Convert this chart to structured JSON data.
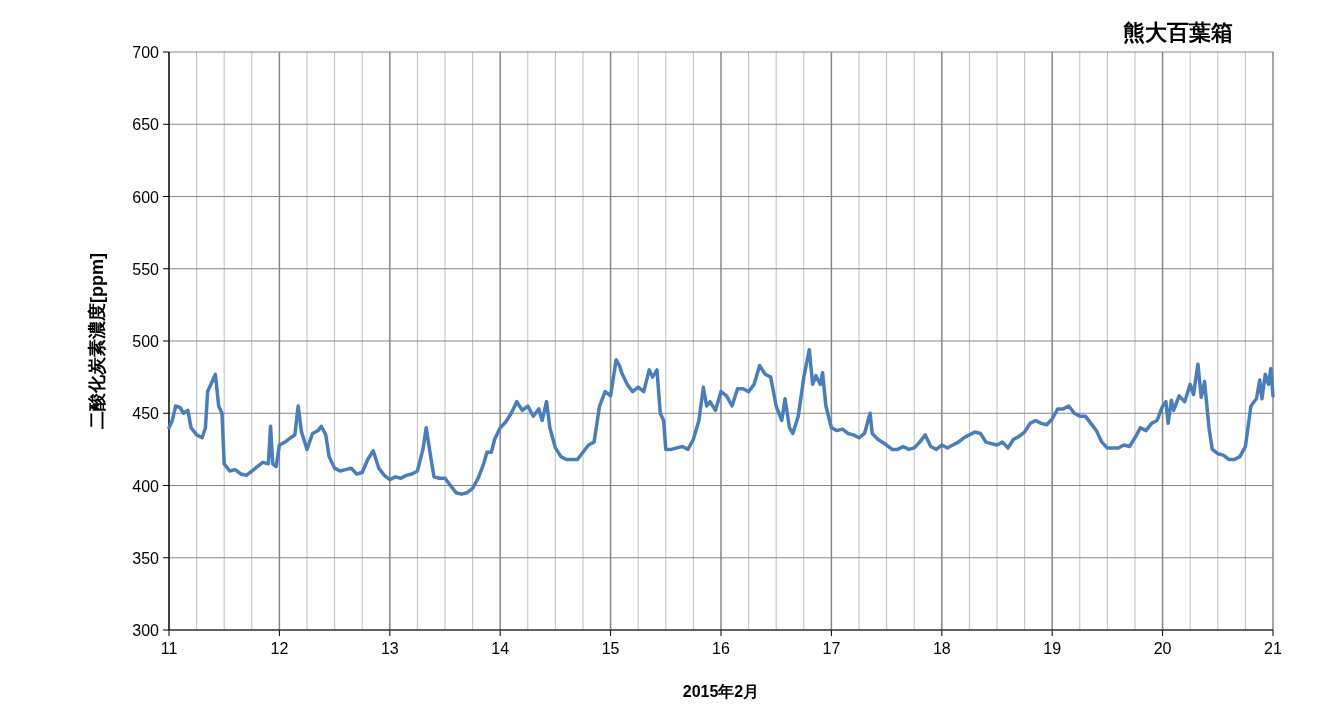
{
  "chart_data": {
    "type": "line",
    "title": "熊大百葉箱",
    "xlabel": "2015年2月",
    "ylabel": "二酸化炭素濃度[ppm]",
    "grid": true,
    "marker": "none",
    "line_style": "solid",
    "xlim": [
      11,
      21
    ],
    "ylim": [
      300,
      700
    ],
    "xticks": [
      11,
      {
        "value": 11.25,
        "label": null
      },
      {
        "value": 11.5,
        "label": null
      },
      {
        "value": 11.75,
        "label": null
      },
      12,
      {
        "value": 12.25,
        "label": null
      },
      {
        "value": 12.5,
        "label": null
      },
      {
        "value": 12.75,
        "label": null
      },
      13,
      {
        "value": 13.25,
        "label": null
      },
      {
        "value": 13.5,
        "label": null
      },
      {
        "value": 13.75,
        "label": null
      },
      14,
      {
        "value": 14.25,
        "label": null
      },
      {
        "value": 14.5,
        "label": null
      },
      {
        "value": 14.75,
        "label": null
      },
      15,
      {
        "value": 15.25,
        "label": null
      },
      {
        "value": 15.5,
        "label": null
      },
      {
        "value": 15.75,
        "label": null
      },
      16,
      {
        "value": 16.25,
        "label": null
      },
      {
        "value": 16.5,
        "label": null
      },
      {
        "value": 16.75,
        "label": null
      },
      17,
      {
        "value": 17.25,
        "label": null
      },
      {
        "value": 17.5,
        "label": null
      },
      {
        "value": 17.75,
        "label": null
      },
      18,
      {
        "value": 18.25,
        "label": null
      },
      {
        "value": 18.5,
        "label": null
      },
      {
        "value": 18.75,
        "label": null
      },
      19,
      {
        "value": 19.25,
        "label": null
      },
      {
        "value": 19.5,
        "label": null
      },
      {
        "value": 19.75,
        "label": null
      },
      20,
      {
        "value": 20.25,
        "label": null
      },
      {
        "value": 20.5,
        "label": null
      },
      {
        "value": 20.75,
        "label": null
      },
      21
    ],
    "yticks": [
      300,
      350,
      400,
      450,
      500,
      550,
      600,
      650,
      700
    ],
    "series": [
      {
        "color": "#4a7ebb",
        "x": [
          11.0,
          11.03,
          11.06,
          11.1,
          11.13,
          11.17,
          11.2,
          11.25,
          11.3,
          11.33,
          11.35,
          11.38,
          11.42,
          11.45,
          11.48,
          11.5,
          11.55,
          11.6,
          11.65,
          11.7,
          11.75,
          11.8,
          11.85,
          11.9,
          11.92,
          11.94,
          11.97,
          12.0,
          12.05,
          12.1,
          12.14,
          12.17,
          12.2,
          12.25,
          12.3,
          12.35,
          12.38,
          12.42,
          12.45,
          12.5,
          12.55,
          12.6,
          12.65,
          12.7,
          12.75,
          12.8,
          12.85,
          12.9,
          12.95,
          13.0,
          13.05,
          13.1,
          13.15,
          13.2,
          13.25,
          13.3,
          13.33,
          13.37,
          13.4,
          13.45,
          13.5,
          13.55,
          13.6,
          13.65,
          13.7,
          13.75,
          13.8,
          13.85,
          13.88,
          13.92,
          13.95,
          14.0,
          14.05,
          14.1,
          14.15,
          14.2,
          14.25,
          14.3,
          14.35,
          14.38,
          14.42,
          14.45,
          14.5,
          14.55,
          14.6,
          14.65,
          14.7,
          14.75,
          14.8,
          14.85,
          14.9,
          14.95,
          15.0,
          15.05,
          15.08,
          15.1,
          15.15,
          15.2,
          15.25,
          15.3,
          15.35,
          15.38,
          15.42,
          15.45,
          15.48,
          15.5,
          15.55,
          15.6,
          15.65,
          15.7,
          15.75,
          15.8,
          15.84,
          15.87,
          15.9,
          15.95,
          16.0,
          16.05,
          16.1,
          16.15,
          16.2,
          16.25,
          16.3,
          16.35,
          16.4,
          16.45,
          16.5,
          16.55,
          16.58,
          16.62,
          16.65,
          16.7,
          16.75,
          16.8,
          16.83,
          16.86,
          16.9,
          16.92,
          16.95,
          17.0,
          17.05,
          17.1,
          17.15,
          17.2,
          17.25,
          17.3,
          17.35,
          17.37,
          17.42,
          17.5,
          17.55,
          17.6,
          17.65,
          17.7,
          17.75,
          17.8,
          17.85,
          17.9,
          17.95,
          18.0,
          18.05,
          18.1,
          18.15,
          18.2,
          18.25,
          18.3,
          18.35,
          18.4,
          18.45,
          18.5,
          18.55,
          18.6,
          18.65,
          18.7,
          18.75,
          18.8,
          18.85,
          18.9,
          18.95,
          19.0,
          19.05,
          19.1,
          19.15,
          19.2,
          19.25,
          19.3,
          19.35,
          19.4,
          19.45,
          19.5,
          19.55,
          19.6,
          19.65,
          19.7,
          19.75,
          19.8,
          19.85,
          19.9,
          19.95,
          20.0,
          20.03,
          20.05,
          20.08,
          20.1,
          20.15,
          20.2,
          20.25,
          20.28,
          20.32,
          20.35,
          20.38,
          20.42,
          20.45,
          20.5,
          20.55,
          20.6,
          20.65,
          20.7,
          20.75,
          20.8,
          20.85,
          20.88,
          20.9,
          20.93,
          20.96,
          20.98,
          21.0
        ],
        "values": [
          440,
          445,
          455,
          454,
          450,
          452,
          440,
          435,
          433,
          440,
          465,
          470,
          477,
          455,
          450,
          415,
          410,
          411,
          408,
          407,
          410,
          413,
          416,
          415,
          441,
          415,
          413,
          428,
          430,
          433,
          435,
          455,
          437,
          425,
          436,
          438,
          441,
          435,
          420,
          412,
          410,
          411,
          412,
          408,
          409,
          418,
          424,
          412,
          407,
          404,
          406,
          405,
          407,
          408,
          410,
          425,
          440,
          420,
          406,
          405,
          405,
          400,
          395,
          394,
          395,
          398,
          405,
          415,
          423,
          423,
          432,
          440,
          444,
          450,
          458,
          452,
          455,
          448,
          453,
          445,
          458,
          440,
          426,
          420,
          418,
          418,
          418,
          423,
          428,
          430,
          455,
          465,
          462,
          487,
          483,
          478,
          470,
          465,
          468,
          465,
          480,
          475,
          480,
          450,
          445,
          425,
          425,
          426,
          427,
          425,
          432,
          445,
          468,
          455,
          458,
          452,
          465,
          462,
          455,
          467,
          467,
          465,
          470,
          483,
          477,
          475,
          455,
          445,
          460,
          440,
          436,
          448,
          475,
          494,
          470,
          476,
          470,
          478,
          455,
          440,
          438,
          439,
          436,
          435,
          433,
          436,
          450,
          436,
          432,
          428,
          425,
          425,
          427,
          425,
          426,
          430,
          435,
          427,
          425,
          428,
          426,
          428,
          430,
          433,
          435,
          437,
          436,
          430,
          429,
          428,
          430,
          426,
          432,
          434,
          437,
          443,
          445,
          443,
          442,
          446,
          453,
          453,
          455,
          450,
          448,
          448,
          443,
          438,
          430,
          426,
          426,
          426,
          428,
          427,
          433,
          440,
          438,
          443,
          445,
          455,
          458,
          443,
          459,
          452,
          462,
          458,
          470,
          463,
          484,
          461,
          472,
          440,
          425,
          422,
          421,
          418,
          418,
          420,
          427,
          455,
          460,
          473,
          460,
          477,
          470,
          481,
          462
        ]
      }
    ]
  }
}
